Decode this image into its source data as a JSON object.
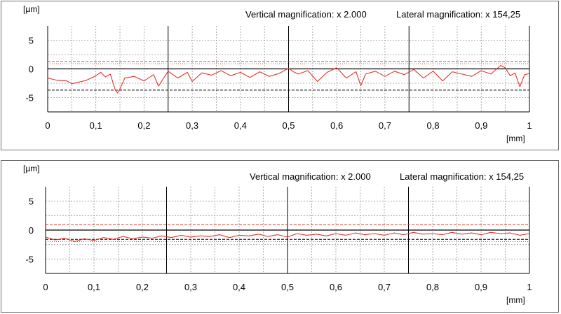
{
  "chart_data": [
    {
      "type": "line",
      "unit_y": "[µm]",
      "unit_x": "[mm]",
      "vertical_magnification": "Vertical magnification: x 2.000",
      "lateral_magnification": "Lateral magnification: x 154,25",
      "xlim": [
        0,
        1
      ],
      "ylim": [
        -7.5,
        7.5
      ],
      "x_ticks": [
        "0",
        "0,1",
        "0,2",
        "0,3",
        "0,4",
        "0,5",
        "0,6",
        "0,7",
        "0,8",
        "0,9",
        "1"
      ],
      "x_tick_values": [
        0,
        0.1,
        0.2,
        0.3,
        0.4,
        0.5,
        0.6,
        0.7,
        0.8,
        0.9,
        1
      ],
      "y_ticks": [
        "5",
        "0",
        "-5"
      ],
      "y_tick_values": [
        5,
        0,
        -5
      ],
      "grid": true,
      "reference_lines": [
        {
          "y": 1.3,
          "style": "dashed",
          "color": "#e8452e"
        },
        {
          "y": 0.9,
          "style": "dotted",
          "color": "#e8452e"
        },
        {
          "y": 0.0,
          "style": "solid",
          "color": "#000000"
        },
        {
          "y": -3.7,
          "style": "dashed",
          "color": "#000000"
        }
      ],
      "series": [
        {
          "color": "#e8312a",
          "x": [
            0,
            0.02,
            0.04,
            0.05,
            0.06,
            0.08,
            0.1,
            0.11,
            0.12,
            0.13,
            0.14,
            0.145,
            0.15,
            0.16,
            0.18,
            0.2,
            0.22,
            0.23,
            0.25,
            0.27,
            0.29,
            0.3,
            0.32,
            0.34,
            0.36,
            0.38,
            0.4,
            0.42,
            0.44,
            0.46,
            0.48,
            0.5,
            0.51,
            0.52,
            0.54,
            0.56,
            0.58,
            0.6,
            0.62,
            0.64,
            0.65,
            0.66,
            0.68,
            0.7,
            0.72,
            0.74,
            0.76,
            0.78,
            0.8,
            0.82,
            0.84,
            0.86,
            0.88,
            0.9,
            0.92,
            0.94,
            0.95,
            0.96,
            0.97,
            0.98,
            0.99,
            1
          ],
          "y": [
            -1.6,
            -2.0,
            -2.1,
            -2.6,
            -2.4,
            -2.0,
            -1.2,
            -0.6,
            -1.4,
            -0.9,
            -3.6,
            -4.2,
            -3.5,
            -1.6,
            -1.3,
            -2.1,
            -1.0,
            -3.0,
            -0.4,
            -1.6,
            -0.6,
            -2.2,
            -0.7,
            -1.1,
            -0.3,
            -1.2,
            -0.6,
            -1.5,
            -0.5,
            -1.3,
            -0.8,
            0.1,
            -0.5,
            -0.9,
            -0.3,
            -2.2,
            -0.6,
            0.2,
            -1.6,
            -0.5,
            -2.9,
            -0.9,
            -0.4,
            -1.3,
            -0.4,
            -1.0,
            -0.1,
            -1.6,
            -0.4,
            -2.1,
            -0.5,
            -0.9,
            -1.3,
            -0.3,
            -0.9,
            0.6,
            0.2,
            -1.2,
            -0.7,
            -3.1,
            -1.0,
            -0.8
          ]
        }
      ]
    },
    {
      "type": "line",
      "unit_y": "[µm]",
      "unit_x": "[mm]",
      "vertical_magnification": "Vertical magnification: x 2.000",
      "lateral_magnification": "Lateral magnification: x 154,25",
      "xlim": [
        0,
        1
      ],
      "ylim": [
        -7.5,
        7.5
      ],
      "x_ticks": [
        "0",
        "0,1",
        "0,2",
        "0,3",
        "0,4",
        "0,5",
        "0,6",
        "0,7",
        "0,8",
        "0,9",
        "1"
      ],
      "x_tick_values": [
        0,
        0.1,
        0.2,
        0.3,
        0.4,
        0.5,
        0.6,
        0.7,
        0.8,
        0.9,
        1
      ],
      "y_ticks": [
        "5",
        "0",
        "-5"
      ],
      "y_tick_values": [
        5,
        0,
        -5
      ],
      "grid": true,
      "reference_lines": [
        {
          "y": 0.9,
          "style": "dashed",
          "color": "#e8452e"
        },
        {
          "y": 0.0,
          "style": "solid",
          "color": "#000000"
        },
        {
          "y": -1.6,
          "style": "dashed",
          "color": "#000000"
        },
        {
          "y": -2.0,
          "style": "dotted",
          "color": "#e8452e"
        }
      ],
      "series": [
        {
          "color": "#e8312a",
          "x": [
            0,
            0.02,
            0.04,
            0.06,
            0.08,
            0.1,
            0.12,
            0.14,
            0.16,
            0.18,
            0.2,
            0.22,
            0.24,
            0.26,
            0.28,
            0.3,
            0.32,
            0.34,
            0.36,
            0.38,
            0.4,
            0.42,
            0.44,
            0.46,
            0.48,
            0.5,
            0.52,
            0.54,
            0.56,
            0.58,
            0.6,
            0.62,
            0.64,
            0.66,
            0.68,
            0.7,
            0.72,
            0.74,
            0.76,
            0.78,
            0.8,
            0.82,
            0.84,
            0.86,
            0.88,
            0.9,
            0.92,
            0.94,
            0.96,
            0.98,
            1
          ],
          "y": [
            -1.2,
            -1.7,
            -1.4,
            -2.0,
            -1.5,
            -1.8,
            -1.3,
            -1.6,
            -1.1,
            -1.5,
            -1.2,
            -1.4,
            -1.0,
            -1.3,
            -0.9,
            -1.2,
            -1.0,
            -1.1,
            -0.8,
            -1.3,
            -0.9,
            -1.0,
            -0.7,
            -1.1,
            -0.8,
            -1.2,
            -0.6,
            -0.9,
            -0.7,
            -1.0,
            -0.6,
            -0.9,
            -0.5,
            -0.8,
            -0.6,
            -0.9,
            -0.5,
            -0.8,
            -0.4,
            -0.7,
            -0.6,
            -0.8,
            -0.4,
            -0.7,
            -0.5,
            -0.8,
            -0.4,
            -0.6,
            -0.5,
            -0.9,
            -0.6
          ]
        }
      ]
    }
  ]
}
